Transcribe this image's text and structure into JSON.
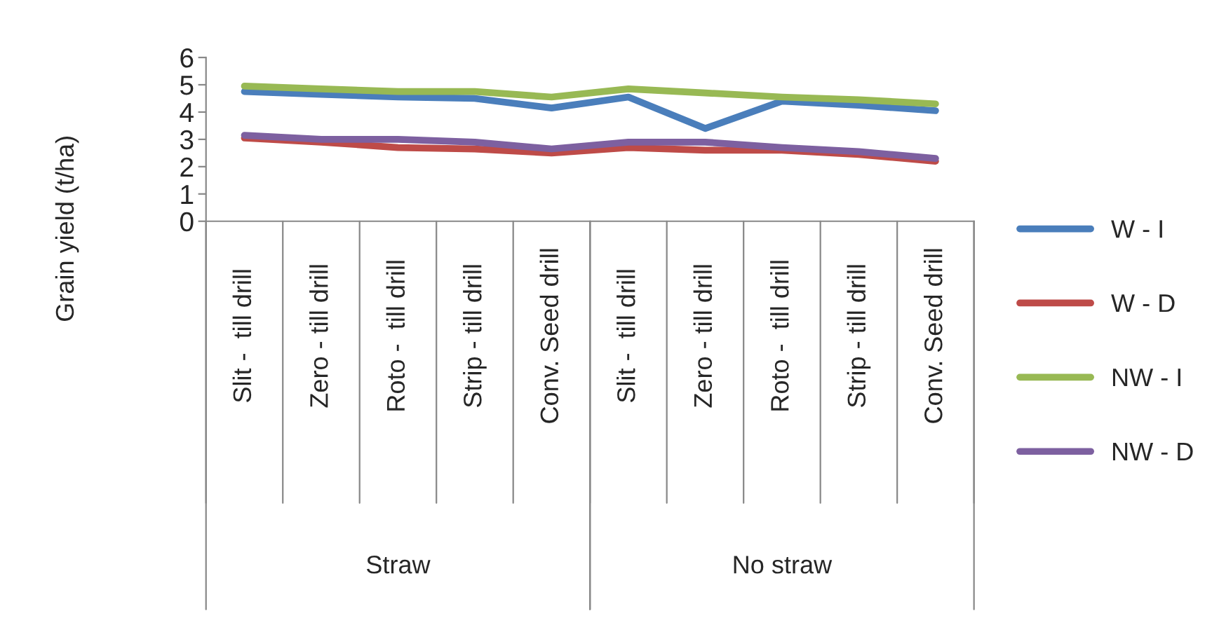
{
  "chart_data": {
    "type": "line",
    "ylabel": "Grain yield (t/ha)",
    "categories": [
      "Slit -  till drill",
      "Zero - till drill",
      "Roto -  till drill",
      "Strip - till drill",
      "Conv. Seed drill",
      "Slit -  till drill",
      "Zero - till drill",
      "Roto -  till drill",
      "Strip - till drill",
      "Conv. Seed drill"
    ],
    "series": [
      {
        "name": "W - I",
        "color": "#4a7ebb",
        "values": [
          4.75,
          4.65,
          4.55,
          4.5,
          4.15,
          4.55,
          3.4,
          4.4,
          4.25,
          4.05
        ]
      },
      {
        "name": "W - D",
        "color": "#be4b48",
        "values": [
          3.05,
          2.9,
          2.7,
          2.65,
          2.5,
          2.7,
          2.6,
          2.6,
          2.45,
          2.2
        ]
      },
      {
        "name": "NW - I",
        "color": "#98b954",
        "values": [
          4.95,
          4.85,
          4.75,
          4.75,
          4.55,
          4.85,
          4.7,
          4.55,
          4.45,
          4.3
        ]
      },
      {
        "name": "NW - D",
        "color": "#7d60a0",
        "values": [
          3.15,
          3.0,
          3.0,
          2.9,
          2.65,
          2.9,
          2.9,
          2.7,
          2.55,
          2.3
        ]
      }
    ],
    "annotations": [
      "Straw",
      "No straw"
    ],
    "ylim": [
      0,
      6
    ],
    "yticks": [
      0,
      1,
      2,
      3,
      4,
      5,
      6
    ],
    "grid": false,
    "legend": "right",
    "marker": "none",
    "line_style": "solid"
  }
}
